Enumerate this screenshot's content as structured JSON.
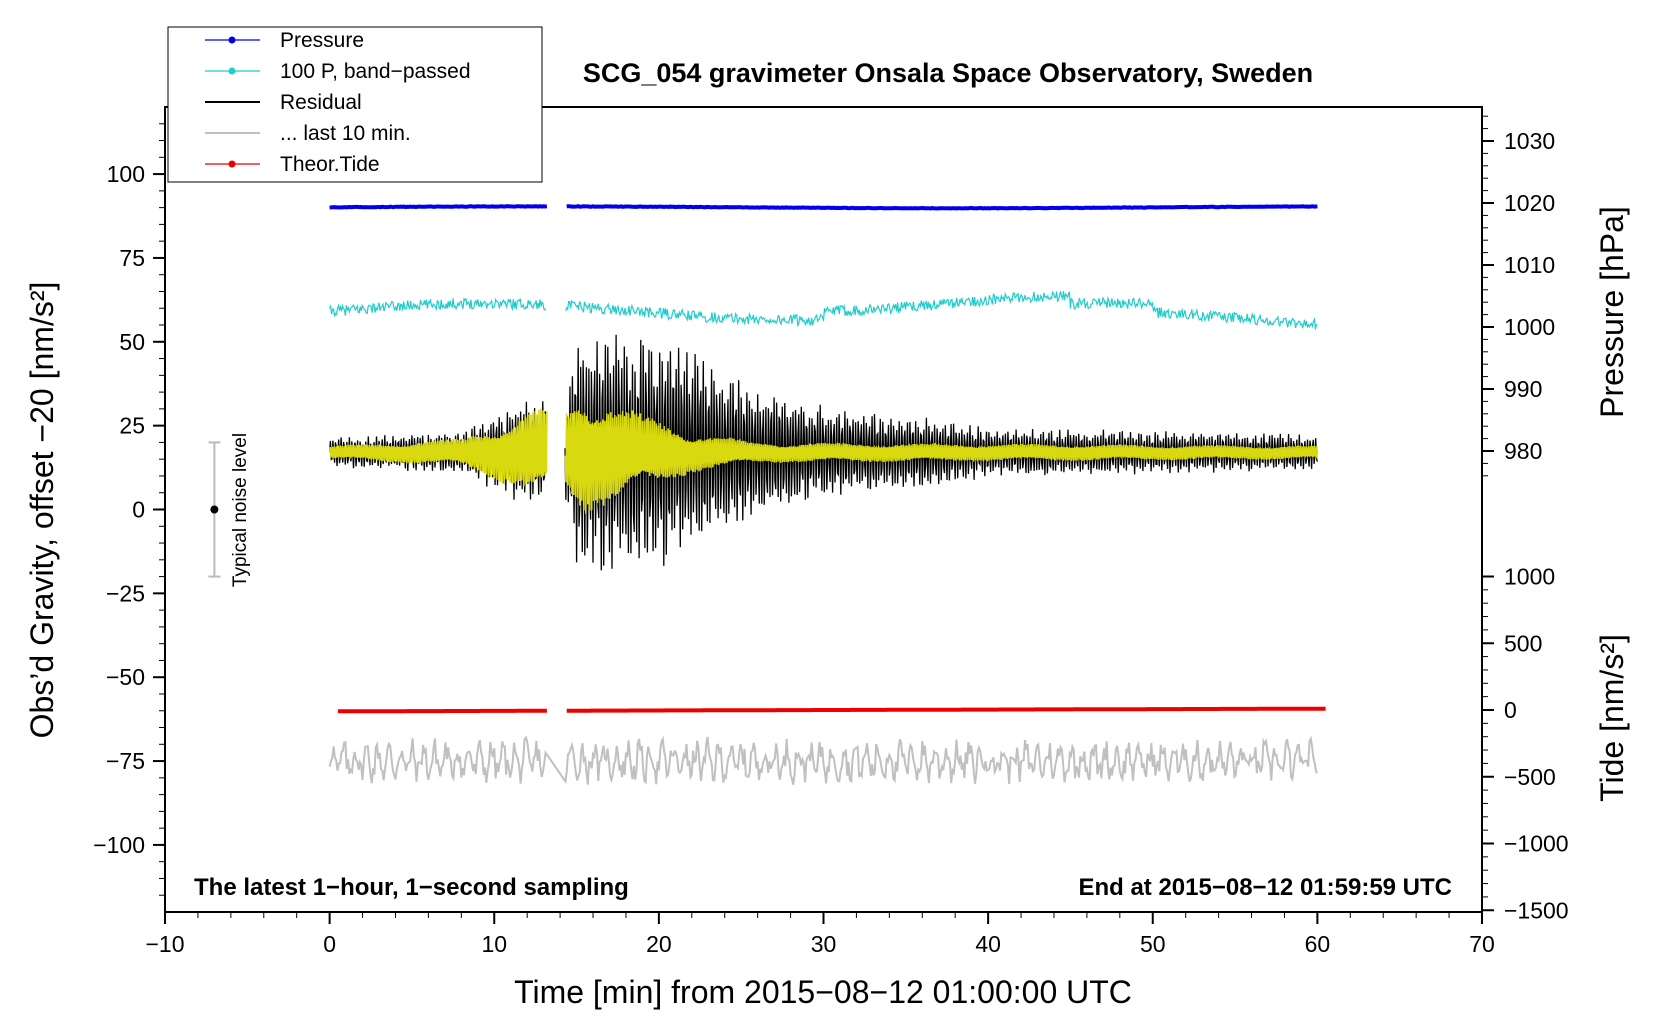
{
  "chart_data": {
    "type": "line",
    "title": "SCG_054 gravimeter Onsala Space Observatory, Sweden",
    "xlabel": "Time [min] from 2015−08−12 01:00:00 UTC",
    "ylabel_left": "Obs’d Gravity, offset −20 [nm/s²]",
    "ylabel_right_pressure": "Pressure [hPa]",
    "ylabel_right_tide": "Tide [nm/s²]",
    "xlim": [
      -10,
      70
    ],
    "ylim_left": [
      -120,
      120
    ],
    "x_ticks": [
      -10,
      0,
      10,
      20,
      30,
      40,
      50,
      60,
      70
    ],
    "x_tick_labels": [
      "−10",
      "0",
      "10",
      "20",
      "30",
      "40",
      "50",
      "60",
      "70"
    ],
    "y_ticks_left": [
      100,
      75,
      50,
      25,
      0,
      -25,
      -50,
      -75,
      -100
    ],
    "y_tick_labels_left": [
      "100",
      "75",
      "50",
      "25",
      "0",
      "−25",
      "−50",
      "−75",
      "−100"
    ],
    "pressure_ticks": [
      1030,
      1020,
      1010,
      1000,
      990,
      980
    ],
    "pressure_tick_labels": [
      "1030",
      "1020",
      "1010",
      "1000",
      "990",
      "980"
    ],
    "tide_ticks": [
      1000,
      500,
      0,
      -500,
      -1000,
      -1500
    ],
    "tide_tick_labels": [
      "1000",
      "500",
      "0",
      "−500",
      "−1000",
      "−1500"
    ],
    "annotation_left": "The latest 1−hour, 1−second sampling",
    "annotation_right": "End at 2015−08−12 01:59:59 UTC",
    "noise_label": "Typical noise level",
    "noise_bar": {
      "x": -7,
      "center": 0,
      "low": -20,
      "high": 20
    },
    "gaps": [
      [
        13.2,
        14.3
      ]
    ],
    "legend": [
      {
        "label": "Pressure",
        "color": "#0000ee",
        "marker": true
      },
      {
        "label": "100 P, band−passed",
        "color": "#22cccc",
        "marker": true
      },
      {
        "label": "Residual",
        "color": "#000000",
        "marker": false
      },
      {
        "label": "... last 10 min.",
        "color": "#c0c0c0",
        "marker": false
      },
      {
        "label": "Theor.Tide",
        "color": "#ee0000",
        "marker": true
      }
    ],
    "series": [
      {
        "name": "Pressure",
        "color": "#0000ee",
        "axis": "pressure",
        "x_range": [
          0,
          60
        ],
        "level": 1019.3,
        "description": "nearly flat around 1019–1020 hPa"
      },
      {
        "name": "100 P, band−passed",
        "color": "#22cccc",
        "axis": "left",
        "x_range": [
          0,
          60
        ],
        "level": 59,
        "noise": 2
      },
      {
        "name": "Residual",
        "color": "#000000",
        "axis": "left",
        "x_range": [
          0,
          60
        ],
        "level": 17,
        "envelope": [
          [
            0,
            4
          ],
          [
            8,
            6
          ],
          [
            12,
            15
          ],
          [
            13.2,
            16
          ],
          [
            14.3,
            14
          ],
          [
            15,
            33
          ],
          [
            19,
            34
          ],
          [
            22,
            28
          ],
          [
            25,
            20
          ],
          [
            30,
            13
          ],
          [
            34,
            11
          ],
          [
            40,
            7
          ],
          [
            50,
            6
          ],
          [
            60,
            5
          ]
        ]
      },
      {
        "name": "Yellow trace",
        "color": "#d9d90f",
        "axis": "left",
        "x_range": [
          0,
          60
        ],
        "level": 17,
        "envelope": [
          [
            0,
            2
          ],
          [
            8,
            4
          ],
          [
            12,
            12
          ],
          [
            13.2,
            13
          ],
          [
            14.3,
            12
          ],
          [
            15.5,
            18
          ],
          [
            19,
            11
          ],
          [
            22,
            6
          ],
          [
            26,
            3
          ],
          [
            60,
            2
          ]
        ]
      },
      {
        "name": "... last 10 min.",
        "color": "#c0c0c0",
        "axis": "left",
        "x_range": [
          0,
          60
        ],
        "level": -75,
        "amplitude": 6
      },
      {
        "name": "Theor.Tide",
        "color": "#ee0000",
        "axis": "tide",
        "x_range": [
          0.5,
          60.5
        ],
        "values_start": -10,
        "values_end": 10
      }
    ]
  }
}
